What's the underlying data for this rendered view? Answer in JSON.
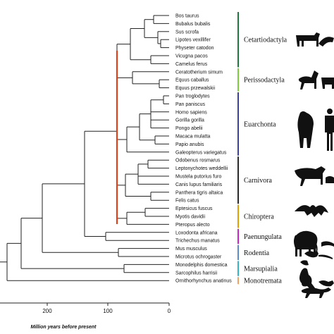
{
  "taxa": [
    "Bos taurus",
    "Bubalus bubalis",
    "Sus scrofa",
    "Lipotes vexillifer",
    "Physeter catodon",
    "Vicugna pacos",
    "Camelus ferus",
    "Ceratotherium simum",
    "Equus caballus",
    "Equus przewalskii",
    "Pan troglodytes",
    "Pan paniscus",
    "Homo sapiens",
    "Gorilla gorilla",
    "Pongo abelii",
    "Macaca mulatta",
    "Papio anubis",
    "Galeopterus variegatus",
    "Odobenus rosmarus",
    "Leptonychotes weddellii",
    "Mustela putorius furo",
    "Canis lupus familiaris",
    "Panthera tigris altaica",
    "Felis catus",
    "Eptesicus fuscus",
    "Myotis davidii",
    "Pteropus alecto",
    "Loxodonta africana",
    "Trichechus manatus",
    "Mus musculus",
    "Microtus ochrogaster",
    "Monodelphis domestica",
    "Sarcophilus harrisii",
    "Ornithorhynchus anatinus"
  ],
  "groups": [
    {
      "name": "Cetartiodactyla",
      "color": "#1b7a3a",
      "icon": "cow-dolphin-icon"
    },
    {
      "name": "Perissodactyla",
      "color": "#7ccd3c",
      "icon": "horse-rhino-icon"
    },
    {
      "name": "Euarchonta",
      "color": "#3a3fa8",
      "icon": "gorilla-human-icon"
    },
    {
      "name": "Carnivora",
      "color": "#2a2a2a",
      "icon": "tiger-icon"
    },
    {
      "name": "Chiroptera",
      "color": "#e0a000",
      "icon": "bat-icon"
    },
    {
      "name": "Paenungulata",
      "color": "#cc22cc",
      "icon": "elephant-icon"
    },
    {
      "name": "Rodentia",
      "color": "#5a8ccc",
      "icon": "mouse-icon"
    },
    {
      "name": "Marsupialia",
      "color": "#33b5c8",
      "icon": "kangaroo-icon"
    },
    {
      "name": "Monotremata",
      "color": "#f0a060",
      "icon": "platypus-icon"
    }
  ],
  "highlight_color": "#e0401a",
  "axis": {
    "ticks": [
      "200",
      "100",
      "0"
    ],
    "label": "Million years before present"
  }
}
